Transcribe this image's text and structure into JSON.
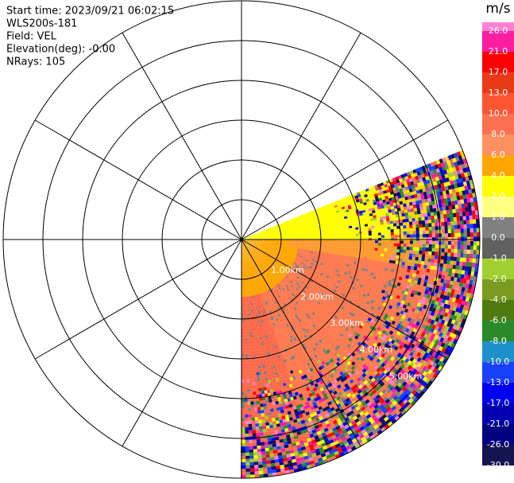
{
  "header": {
    "lines": [
      "Start time: 2023/09/21 06:02:15",
      "WLS200s-181",
      "Field: VEL",
      "Elevation(deg): -0.00",
      "NRays: 105"
    ]
  },
  "range_labels": [
    "1.00km",
    "2.00km",
    "3.00km",
    "4.00km",
    "5.00km"
  ],
  "colorbar": {
    "unit": "m/s",
    "labels": [
      "26.0",
      "21.0",
      "17.0",
      "13.0",
      "10.0",
      "8.0",
      "6.0",
      "4.0",
      "2.0",
      "1.0",
      "0.0",
      "-1.0",
      "-2.0",
      "-4.0",
      "-6.0",
      "-8.0",
      "-10.0",
      "-13.0",
      "-17.0",
      "-21.0",
      "-26.0",
      "-30.0"
    ],
    "colors": [
      "#ff80d0",
      "#ff1ea0",
      "#ff0000",
      "#e83a18",
      "#ff5533",
      "#ff7050",
      "#ff9060",
      "#ffa500",
      "#ffff00",
      "#ffff80",
      "#808080",
      "#606060",
      "#a0d030",
      "#7a9a20",
      "#4f7a10",
      "#2a8a2a",
      "#1e8fc8",
      "#1a40ff",
      "#0000ee",
      "#0000b0",
      "#000080",
      "#141450"
    ]
  }
}
